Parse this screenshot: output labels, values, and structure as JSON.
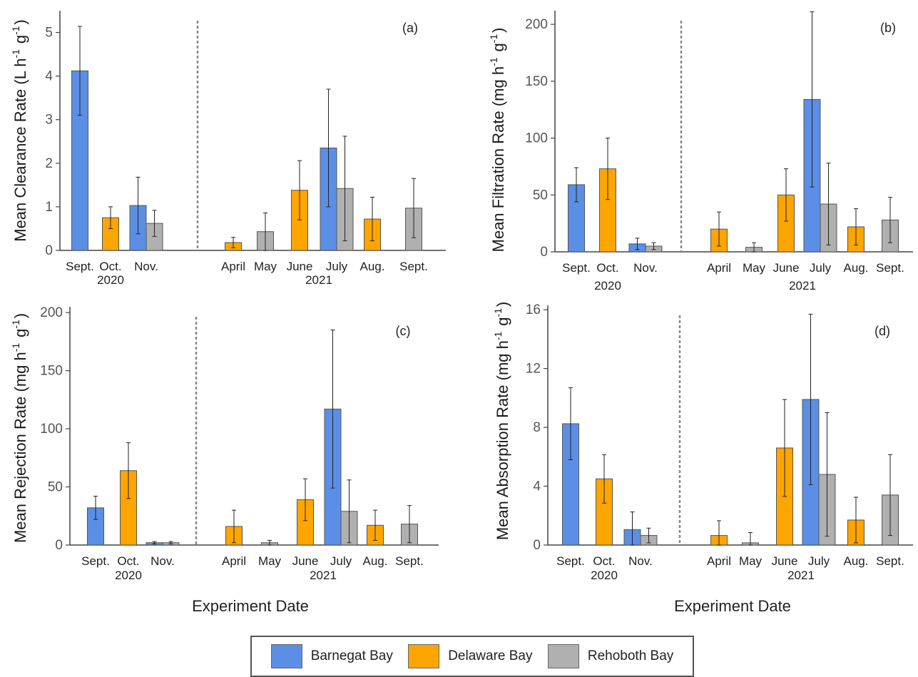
{
  "figure": {
    "x_axis_label": "Experiment Date",
    "years": [
      "2020",
      "2021"
    ],
    "categories": [
      "Sept.",
      "Oct.",
      "Nov.",
      "April",
      "May",
      "June",
      "July",
      "Aug.",
      "Sept."
    ]
  },
  "colors": {
    "Barnegat Bay": "#5B8FE6",
    "Delaware Bay": "#FFA500",
    "Rehoboth Bay": "#B0B0B0"
  },
  "legend": {
    "items": [
      {
        "label": "Barnegat Bay",
        "color": "#5B8FE6"
      },
      {
        "label": "Delaware Bay",
        "color": "#FFA500"
      },
      {
        "label": "Rehoboth Bay",
        "color": "#B0B0B0"
      }
    ]
  },
  "chart_data": [
    {
      "type": "bar",
      "panel": "(a)",
      "ylabel": "Mean Clearance Rate (L h⁻¹ g⁻¹)",
      "ylim": [
        0,
        5.5
      ],
      "yticks": [
        0,
        1,
        2,
        3,
        4,
        5
      ],
      "categories": [
        "Sept.",
        "Oct.",
        "Nov.",
        "April",
        "May",
        "June",
        "July",
        "Aug.",
        "Sept."
      ],
      "series": [
        {
          "name": "Barnegat Bay",
          "values": [
            4.12,
            null,
            1.03,
            null,
            null,
            null,
            2.35,
            null,
            null
          ],
          "errors": [
            1.02,
            null,
            0.65,
            null,
            null,
            null,
            1.35,
            null,
            null
          ]
        },
        {
          "name": "Delaware Bay",
          "values": [
            null,
            0.75,
            null,
            0.18,
            null,
            1.38,
            null,
            0.72,
            null
          ],
          "errors": [
            null,
            0.25,
            null,
            0.12,
            null,
            0.68,
            null,
            0.5,
            null
          ]
        },
        {
          "name": "Rehoboth Bay",
          "values": [
            null,
            null,
            0.62,
            null,
            0.43,
            null,
            1.42,
            null,
            0.97
          ],
          "errors": [
            null,
            null,
            0.3,
            null,
            0.43,
            null,
            1.2,
            null,
            0.68
          ]
        }
      ]
    },
    {
      "type": "bar",
      "panel": "(b)",
      "ylabel": "Mean Filtration Rate (mg h⁻¹ g⁻¹)",
      "ylim": [
        0,
        212
      ],
      "yticks": [
        0,
        50,
        100,
        150,
        200
      ],
      "categories": [
        "Sept.",
        "Oct.",
        "Nov.",
        "April",
        "May",
        "June",
        "July",
        "Aug.",
        "Sept."
      ],
      "series": [
        {
          "name": "Barnegat Bay",
          "values": [
            59,
            null,
            7,
            null,
            null,
            null,
            134,
            null,
            null
          ],
          "errors": [
            15,
            null,
            5,
            null,
            null,
            null,
            77,
            null,
            null
          ]
        },
        {
          "name": "Delaware Bay",
          "values": [
            null,
            73,
            null,
            20,
            null,
            50,
            null,
            22,
            null
          ],
          "errors": [
            null,
            27,
            null,
            15,
            null,
            23,
            null,
            16,
            null
          ]
        },
        {
          "name": "Rehoboth Bay",
          "values": [
            null,
            null,
            5,
            null,
            4,
            null,
            42,
            null,
            28
          ],
          "errors": [
            null,
            null,
            3,
            null,
            4,
            null,
            36,
            null,
            20
          ]
        }
      ]
    },
    {
      "type": "bar",
      "panel": "(c)",
      "ylabel": "Mean Rejection Rate (mg h⁻¹ g⁻¹)",
      "ylim": [
        0,
        205
      ],
      "yticks": [
        0,
        50,
        100,
        150,
        200
      ],
      "categories": [
        "Sept.",
        "Oct.",
        "Nov.",
        "April",
        "May",
        "June",
        "July",
        "Aug.",
        "Sept."
      ],
      "series": [
        {
          "name": "Barnegat Bay",
          "values": [
            32,
            null,
            2,
            null,
            null,
            null,
            117,
            null,
            null
          ],
          "errors": [
            10,
            null,
            1,
            null,
            null,
            null,
            68,
            null,
            null
          ]
        },
        {
          "name": "Delaware Bay",
          "values": [
            null,
            64,
            null,
            16,
            null,
            39,
            null,
            17,
            null
          ],
          "errors": [
            null,
            24,
            null,
            14,
            null,
            18,
            null,
            13,
            null
          ]
        },
        {
          "name": "Rehoboth Bay",
          "values": [
            null,
            null,
            2,
            null,
            2,
            null,
            29,
            null,
            18
          ],
          "errors": [
            null,
            null,
            1,
            null,
            2,
            null,
            27,
            null,
            16
          ]
        }
      ]
    },
    {
      "type": "bar",
      "panel": "(d)",
      "ylabel": "Mean Absorption Rate (mg h⁻¹ g⁻¹)",
      "ylim": [
        0,
        16.3
      ],
      "yticks": [
        0,
        4,
        8,
        12,
        16
      ],
      "categories": [
        "Sept.",
        "Oct.",
        "Nov.",
        "April",
        "May",
        "June",
        "July",
        "Aug.",
        "Sept."
      ],
      "series": [
        {
          "name": "Barnegat Bay",
          "values": [
            8.25,
            null,
            1.05,
            null,
            null,
            null,
            9.9,
            null,
            null
          ],
          "errors": [
            2.45,
            null,
            1.2,
            null,
            null,
            null,
            5.8,
            null,
            null
          ]
        },
        {
          "name": "Delaware Bay",
          "values": [
            null,
            4.5,
            null,
            0.65,
            null,
            6.6,
            null,
            1.7,
            null
          ],
          "errors": [
            null,
            1.65,
            null,
            1.0,
            null,
            3.3,
            null,
            1.55,
            null
          ]
        },
        {
          "name": "Rehoboth Bay",
          "values": [
            null,
            null,
            0.65,
            null,
            0.15,
            null,
            4.8,
            null,
            3.4
          ],
          "errors": [
            null,
            null,
            0.5,
            null,
            0.7,
            null,
            4.2,
            null,
            2.75
          ]
        }
      ]
    }
  ]
}
